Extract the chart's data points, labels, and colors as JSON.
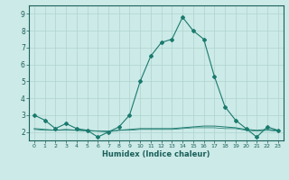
{
  "xlabel": "Humidex (Indice chaleur)",
  "x": [
    0,
    1,
    2,
    3,
    4,
    5,
    6,
    7,
    8,
    9,
    10,
    11,
    12,
    13,
    14,
    15,
    16,
    17,
    18,
    19,
    20,
    21,
    22,
    23
  ],
  "line1": [
    3.0,
    2.7,
    2.2,
    2.5,
    2.2,
    2.1,
    1.7,
    2.0,
    2.3,
    3.0,
    5.0,
    6.5,
    7.3,
    7.5,
    8.8,
    8.0,
    7.5,
    5.3,
    3.5,
    2.7,
    2.2,
    1.7,
    2.3,
    2.1
  ],
  "line2": [
    2.2,
    2.15,
    2.1,
    2.15,
    2.1,
    2.1,
    2.05,
    2.05,
    2.1,
    2.15,
    2.2,
    2.2,
    2.2,
    2.2,
    2.25,
    2.3,
    2.35,
    2.35,
    2.3,
    2.25,
    2.15,
    2.1,
    2.15,
    2.1
  ],
  "line3": [
    2.15,
    2.1,
    2.1,
    2.1,
    2.1,
    2.05,
    2.05,
    2.0,
    2.1,
    2.1,
    2.15,
    2.15,
    2.15,
    2.15,
    2.2,
    2.25,
    2.25,
    2.25,
    2.2,
    2.2,
    2.1,
    2.05,
    2.1,
    2.05
  ],
  "line_color": "#1a7a6e",
  "bg_color": "#cceae7",
  "grid_color": "#aed4d0",
  "ylim": [
    1.5,
    9.5
  ],
  "xlim": [
    -0.5,
    23.5
  ],
  "yticks": [
    2,
    3,
    4,
    5,
    6,
    7,
    8,
    9
  ],
  "tick_color": "#1a5f5a",
  "label_color": "#1a5f5a"
}
